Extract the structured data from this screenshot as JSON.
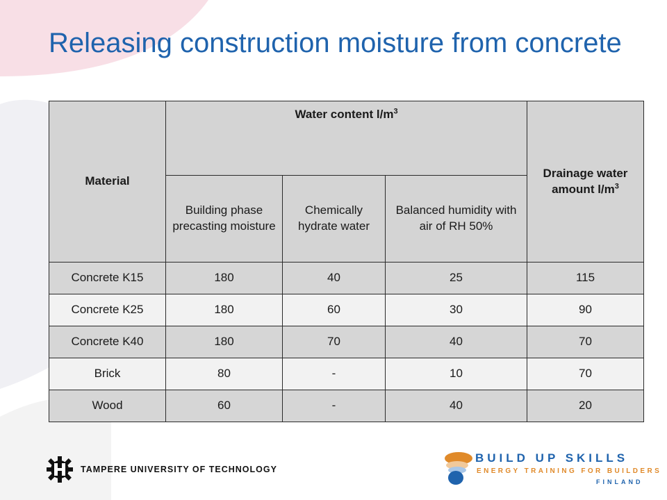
{
  "slide": {
    "title": "Releasing construction moisture from concrete"
  },
  "table": {
    "header": {
      "material": "Material",
      "water_content": "Water content l/m",
      "water_content_sup": "3",
      "drainage": "Drainage water amount l/m",
      "drainage_sup": "3"
    },
    "subheaders": [
      "Building phase precasting moisture",
      "Chemically hydrate water",
      "Balanced humidity with air of RH 50%"
    ],
    "rows": [
      [
        "Concrete K15",
        "180",
        "40",
        "25",
        "115"
      ],
      [
        "Concrete K25",
        "180",
        "60",
        "30",
        "90"
      ],
      [
        "Concrete K40",
        "180",
        "70",
        "40",
        "70"
      ],
      [
        "Brick",
        "80",
        "-",
        "10",
        "70"
      ],
      [
        "Wood",
        "60",
        "-",
        "40",
        "20"
      ]
    ]
  },
  "footer": {
    "university": "TAMPERE UNIVERSITY OF TECHNOLOGY",
    "logo_title": "BUILD UP SKILLS",
    "logo_subtitle": "ENERGY TRAINING FOR BUILDERS",
    "logo_country": "FINLAND"
  },
  "colors": {
    "title": "#1f63ad",
    "header_bg": "#d4d4d4",
    "row_dark": "#d6d6d6",
    "row_light": "#f2f2f2",
    "logo_blue": "#1f63ad",
    "logo_orange": "#e08a2a"
  },
  "icons": {
    "left_logo": "gear-logo-icon",
    "right_logo": "build-up-skills-logo-icon"
  }
}
